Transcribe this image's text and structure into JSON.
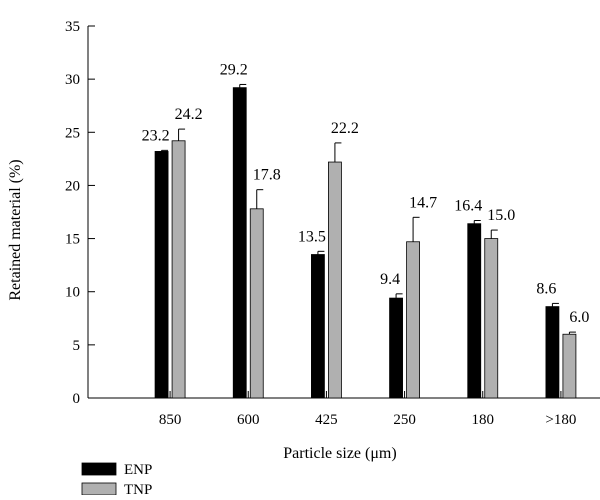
{
  "chart_data": {
    "type": "bar",
    "categories": [
      "850",
      "600",
      "425",
      "250",
      "180",
      ">180"
    ],
    "series": [
      {
        "name": "ENP",
        "color": "#000000",
        "values": [
          23.2,
          29.2,
          13.5,
          9.4,
          16.4,
          8.6
        ],
        "errors": [
          0.1,
          0.3,
          0.3,
          0.4,
          0.3,
          0.3
        ],
        "value_labels": [
          "23.2",
          "29.2",
          "13.5",
          "9.4",
          "16.4",
          "8.6"
        ]
      },
      {
        "name": "TNP",
        "color": "#b0b0b0",
        "values": [
          24.2,
          17.8,
          22.2,
          14.7,
          15.0,
          6.0
        ],
        "errors": [
          1.1,
          1.8,
          1.8,
          2.3,
          0.8,
          0.2
        ],
        "value_labels": [
          "24.2",
          "17.8",
          "22.2",
          "14.7",
          "15.0",
          "6.0"
        ]
      }
    ],
    "xlabel": "Particle size (μm)",
    "ylabel": "Retained material (%)",
    "ylim": [
      0,
      35
    ],
    "yticks": [
      0,
      5,
      10,
      15,
      20,
      25,
      30,
      35
    ],
    "grid": false,
    "legend": "bottom-left"
  }
}
